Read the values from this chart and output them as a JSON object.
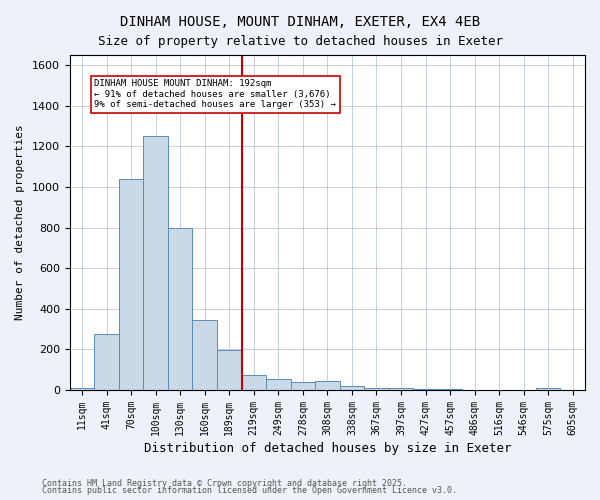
{
  "title1": "DINHAM HOUSE, MOUNT DINHAM, EXETER, EX4 4EB",
  "title2": "Size of property relative to detached houses in Exeter",
  "xlabel": "Distribution of detached houses by size in Exeter",
  "ylabel": "Number of detached properties",
  "categories": [
    "11sqm",
    "41sqm",
    "70sqm",
    "100sqm",
    "130sqm",
    "160sqm",
    "189sqm",
    "219sqm",
    "249sqm",
    "278sqm",
    "308sqm",
    "338sqm",
    "367sqm",
    "397sqm",
    "427sqm",
    "457sqm",
    "486sqm",
    "516sqm",
    "546sqm",
    "575sqm",
    "605sqm"
  ],
  "values": [
    8,
    275,
    1040,
    1250,
    800,
    345,
    195,
    75,
    55,
    38,
    45,
    18,
    10,
    8,
    5,
    3,
    1,
    0,
    0,
    8,
    0
  ],
  "bar_color": "#c9d9e8",
  "bar_edge_color": "#5b8db8",
  "vline_x": 6,
  "vline_color": "#cc0000",
  "annotation_text": "DINHAM HOUSE MOUNT DINHAM: 192sqm\n← 91% of detached houses are smaller (3,676)\n9% of semi-detached houses are larger (353) →",
  "annotation_box_color": "#ffffff",
  "annotation_box_edge": "#cc0000",
  "ylim": [
    0,
    1650
  ],
  "yticks": [
    0,
    200,
    400,
    600,
    800,
    1000,
    1200,
    1400,
    1600
  ],
  "footnote1": "Contains HM Land Registry data © Crown copyright and database right 2025.",
  "footnote2": "Contains public sector information licensed under the Open Government Licence v3.0.",
  "background_color": "#eef2f8",
  "plot_bg_color": "#ffffff"
}
